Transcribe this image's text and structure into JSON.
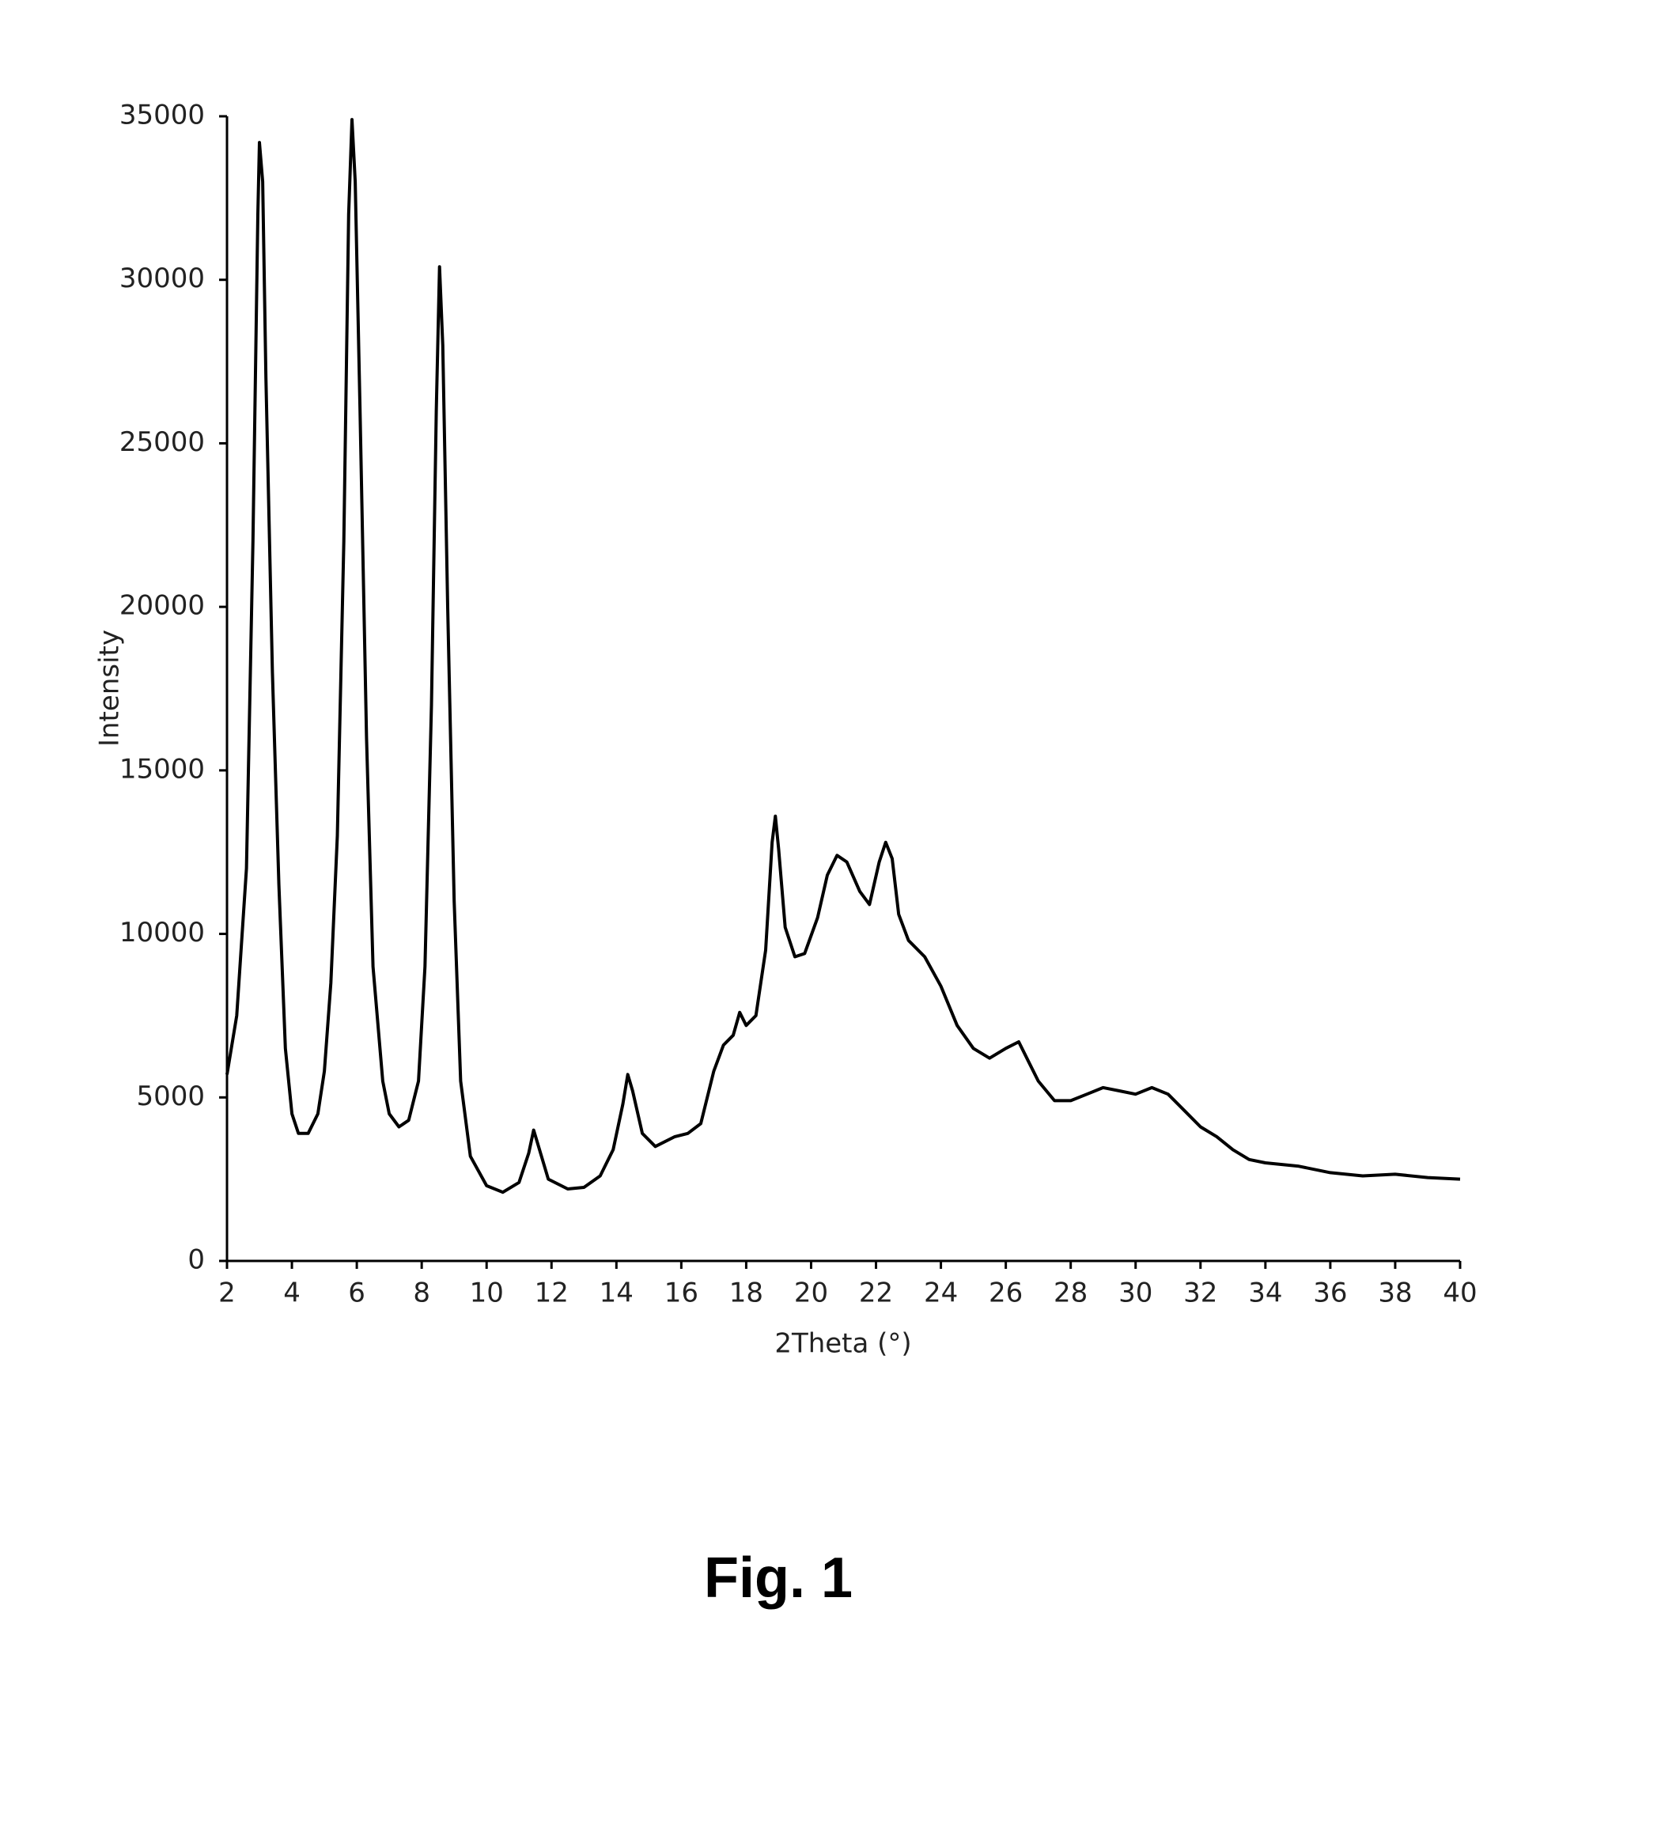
{
  "chart_data": {
    "type": "line",
    "x_label": "2Theta (°)",
    "y_label": "Intensity",
    "caption": "Fig. 1",
    "xlim": [
      2,
      40
    ],
    "ylim": [
      0,
      35000
    ],
    "xticks": [
      2,
      4,
      6,
      8,
      10,
      12,
      14,
      16,
      18,
      20,
      22,
      24,
      26,
      28,
      30,
      32,
      34,
      36,
      38,
      40
    ],
    "yticks": [
      0,
      5000,
      10000,
      15000,
      20000,
      25000,
      30000,
      35000
    ],
    "grid": false,
    "color": "#000000",
    "x": [
      2.0,
      2.3,
      2.6,
      2.8,
      2.95,
      3.0,
      3.1,
      3.2,
      3.4,
      3.6,
      3.8,
      4.0,
      4.2,
      4.5,
      4.8,
      5.0,
      5.2,
      5.4,
      5.6,
      5.75,
      5.85,
      5.95,
      6.1,
      6.3,
      6.5,
      6.8,
      7.0,
      7.3,
      7.6,
      7.9,
      8.1,
      8.3,
      8.45,
      8.55,
      8.65,
      8.8,
      9.0,
      9.2,
      9.5,
      10.0,
      10.5,
      11.0,
      11.3,
      11.45,
      11.6,
      11.9,
      12.5,
      13.0,
      13.5,
      13.9,
      14.2,
      14.35,
      14.5,
      14.8,
      15.2,
      15.8,
      16.2,
      16.6,
      17.0,
      17.3,
      17.6,
      17.8,
      18.0,
      18.3,
      18.6,
      18.8,
      18.9,
      19.0,
      19.2,
      19.5,
      19.8,
      20.2,
      20.5,
      20.8,
      21.1,
      21.5,
      21.8,
      22.1,
      22.3,
      22.5,
      22.7,
      23.0,
      23.5,
      24.0,
      24.5,
      25.0,
      25.5,
      26.0,
      26.4,
      26.7,
      27.0,
      27.5,
      28.0,
      28.5,
      29.0,
      29.5,
      30.0,
      30.5,
      31.0,
      31.5,
      32.0,
      32.5,
      33.0,
      33.5,
      34.0,
      35.0,
      36.0,
      37.0,
      38.0,
      39.0,
      40.0
    ],
    "values": [
      5700,
      7500,
      12000,
      22000,
      32000,
      34200,
      33000,
      27000,
      18000,
      11500,
      6500,
      4500,
      3900,
      3900,
      4500,
      5800,
      8500,
      13000,
      22000,
      32000,
      34900,
      33000,
      26000,
      16000,
      9000,
      5500,
      4500,
      4100,
      4300,
      5500,
      9000,
      17000,
      26000,
      30400,
      28000,
      20000,
      11000,
      5500,
      3200,
      2300,
      2100,
      2400,
      3300,
      4000,
      3500,
      2500,
      2200,
      2250,
      2600,
      3400,
      4800,
      5700,
      5200,
      3900,
      3500,
      3800,
      3900,
      4200,
      5800,
      6600,
      6900,
      7600,
      7200,
      7500,
      9500,
      12800,
      13600,
      12600,
      10200,
      9300,
      9400,
      10500,
      11800,
      12400,
      12200,
      11300,
      10900,
      12200,
      12800,
      12300,
      10600,
      9800,
      9300,
      8400,
      7200,
      6500,
      6200,
      6500,
      6700,
      6100,
      5500,
      4900,
      4900,
      5100,
      5300,
      5200,
      5100,
      5300,
      5100,
      4600,
      4100,
      3800,
      3400,
      3100,
      3000,
      2900,
      2700,
      2600,
      2650,
      2550,
      2500
    ]
  }
}
